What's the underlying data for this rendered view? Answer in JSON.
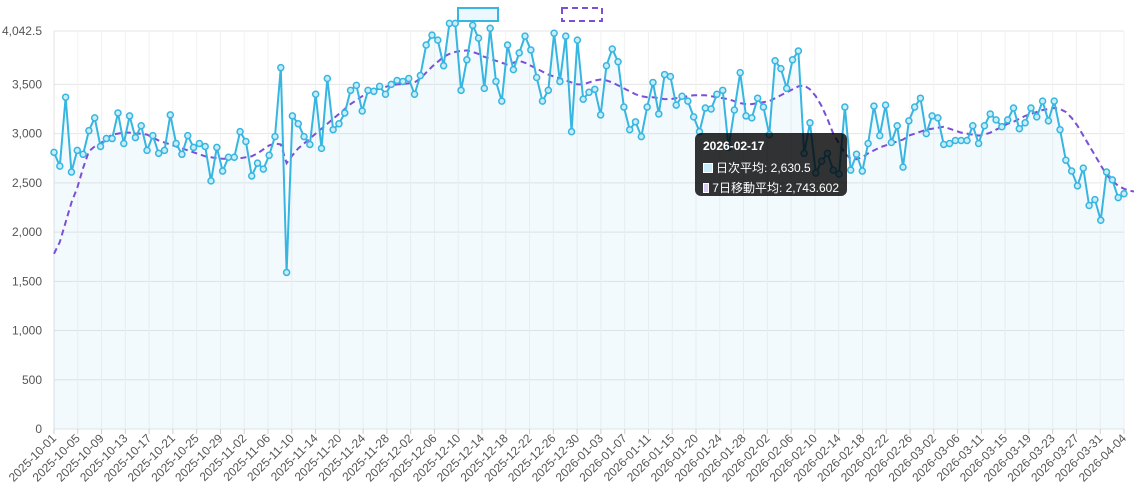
{
  "chart_data": {
    "type": "line",
    "title": "",
    "xlabel": "",
    "ylabel": "",
    "ylim": [
      0,
      4042.5
    ],
    "y_ticks": [
      "0",
      "500",
      "1,000",
      "1,500",
      "2,000",
      "2,500",
      "3,000",
      "3,500",
      "4,042.5"
    ],
    "y_tick_values": [
      0,
      500,
      1000,
      1500,
      2000,
      2500,
      3000,
      3500,
      4042.5
    ],
    "grid": true,
    "legend_position": "top-center",
    "x_start": "2025-10-01",
    "x_end": "2026-04-04",
    "x_tick_labels": [
      "2025-10-01",
      "2025-10-05",
      "2025-10-09",
      "2025-10-13",
      "2025-10-17",
      "2025-10-21",
      "2025-10-25",
      "2025-10-29",
      "2025-11-02",
      "2025-11-06",
      "2025-11-10",
      "2025-11-14",
      "2025-11-20",
      "2025-11-24",
      "2025-11-28",
      "2025-12-02",
      "2025-12-06",
      "2025-12-10",
      "2025-12-14",
      "2025-12-18",
      "2025-12-22",
      "2025-12-26",
      "2025-12-30",
      "2026-01-03",
      "2026-01-07",
      "2026-01-11",
      "2026-01-15",
      "2026-01-20",
      "2026-01-24",
      "2026-01-28",
      "2026-02-02",
      "2026-02-06",
      "2026-02-10",
      "2026-02-14",
      "2026-02-18",
      "2026-02-22",
      "2026-02-26",
      "2026-03-02",
      "2026-03-06",
      "2026-03-11",
      "2026-03-15",
      "2026-03-19",
      "2026-03-23",
      "2026-03-27",
      "2026-03-31",
      "2026-04-04"
    ],
    "series": [
      {
        "name": "日次平均",
        "color": "#36b6e0",
        "style": "solid",
        "fill": true,
        "values": [
          2810,
          2670,
          3370,
          2610,
          2830,
          2790,
          3030,
          3160,
          2870,
          2950,
          2950,
          3210,
          2900,
          3180,
          2960,
          3080,
          2830,
          2980,
          2800,
          2830,
          3190,
          2900,
          2790,
          2980,
          2860,
          2900,
          2870,
          2520,
          2860,
          2620,
          2760,
          2760,
          3020,
          2920,
          2570,
          2700,
          2640,
          2780,
          2970,
          3670,
          1590,
          3180,
          3100,
          2970,
          2890,
          3400,
          2850,
          3560,
          3040,
          3100,
          3210,
          3440,
          3490,
          3230,
          3440,
          3430,
          3480,
          3400,
          3500,
          3540,
          3530,
          3560,
          3400,
          3590,
          3900,
          4000,
          3950,
          3690,
          4120,
          4120,
          3440,
          3750,
          4100,
          3970,
          3460,
          4070,
          3530,
          3330,
          3900,
          3650,
          3820,
          3990,
          3850,
          3570,
          3330,
          3440,
          4020,
          3530,
          3990,
          3020,
          3950,
          3350,
          3420,
          3450,
          3190,
          3690,
          3860,
          3730,
          3270,
          3040,
          3120,
          2970,
          3270,
          3520,
          3200,
          3600,
          3580,
          3290,
          3380,
          3330,
          3170,
          3020,
          3260,
          3250,
          3400,
          3440,
          2860,
          3240,
          3620,
          3180,
          3160,
          3360,
          3270,
          2990,
          3740,
          3660,
          3460,
          3750,
          3840,
          2800,
          3110,
          2600,
          2720,
          2800,
          2630,
          2590,
          3270,
          2630,
          2790,
          2620,
          2900,
          3280,
          2980,
          3290,
          2910,
          3080,
          2660,
          3130,
          3270,
          3360,
          3000,
          3180,
          3160,
          2890,
          2900,
          2930,
          2930,
          2930,
          3080,
          2900,
          3080,
          3200,
          3140,
          3070,
          3140,
          3260,
          3050,
          3110,
          3260,
          3170,
          3330,
          3130,
          3330,
          3040,
          2730,
          2620,
          2470,
          2650,
          2270,
          2330,
          2120,
          2610,
          2530,
          2350,
          2390
        ]
      },
      {
        "name": "7日移動平均",
        "color": "#7b4fd6",
        "style": "dashed",
        "fill": false,
        "values": [
          1780,
          1900,
          2100,
          2300,
          2450,
          2650,
          2820,
          2870,
          2900,
          2950,
          2990,
          3000,
          3010,
          3010,
          3000,
          3000,
          2990,
          2960,
          2930,
          2910,
          2890,
          2870,
          2850,
          2830,
          2810,
          2790,
          2770,
          2760,
          2750,
          2745,
          2745,
          2750,
          2750,
          2760,
          2770,
          2800,
          2840,
          2880,
          2900,
          2890,
          2700,
          2780,
          2850,
          2900,
          2950,
          3000,
          3050,
          3100,
          3150,
          3200,
          3250,
          3300,
          3340,
          3380,
          3410,
          3440,
          3460,
          3475,
          3490,
          3500,
          3505,
          3510,
          3520,
          3560,
          3620,
          3680,
          3730,
          3780,
          3810,
          3830,
          3840,
          3845,
          3830,
          3810,
          3780,
          3760,
          3740,
          3720,
          3700,
          3720,
          3740,
          3720,
          3690,
          3660,
          3630,
          3600,
          3580,
          3560,
          3540,
          3520,
          3500,
          3500,
          3520,
          3540,
          3550,
          3540,
          3520,
          3490,
          3460,
          3430,
          3400,
          3380,
          3370,
          3370,
          3360,
          3350,
          3350,
          3360,
          3370,
          3380,
          3390,
          3390,
          3390,
          3380,
          3370,
          3360,
          3350,
          3330,
          3310,
          3300,
          3300,
          3310,
          3320,
          3330,
          3360,
          3390,
          3420,
          3450,
          3480,
          3490,
          3450,
          3380,
          3280,
          3150,
          3000,
          2900,
          2800,
          2743.602,
          2740,
          2760,
          2800,
          2830,
          2860,
          2880,
          2900,
          2920,
          2940,
          2980,
          3000,
          3020,
          3040,
          3050,
          3060,
          3070,
          3050,
          3030,
          3010,
          3000,
          2990,
          2980,
          2990,
          3010,
          3040,
          3070,
          3100,
          3120,
          3150,
          3180,
          3200,
          3220,
          3240,
          3250,
          3260,
          3250,
          3220,
          3160,
          3080,
          2980,
          2880,
          2780,
          2680,
          2580,
          2520,
          2470,
          2440,
          2420,
          2410
        ]
      }
    ],
    "tooltip": {
      "date": "2026-02-17",
      "rows": [
        {
          "label": "日次平均: 2,630.5",
          "color": "#36b6e0"
        },
        {
          "label": "7日移動平均: 2,743.602",
          "color": "#7b4fd6"
        }
      ]
    }
  }
}
